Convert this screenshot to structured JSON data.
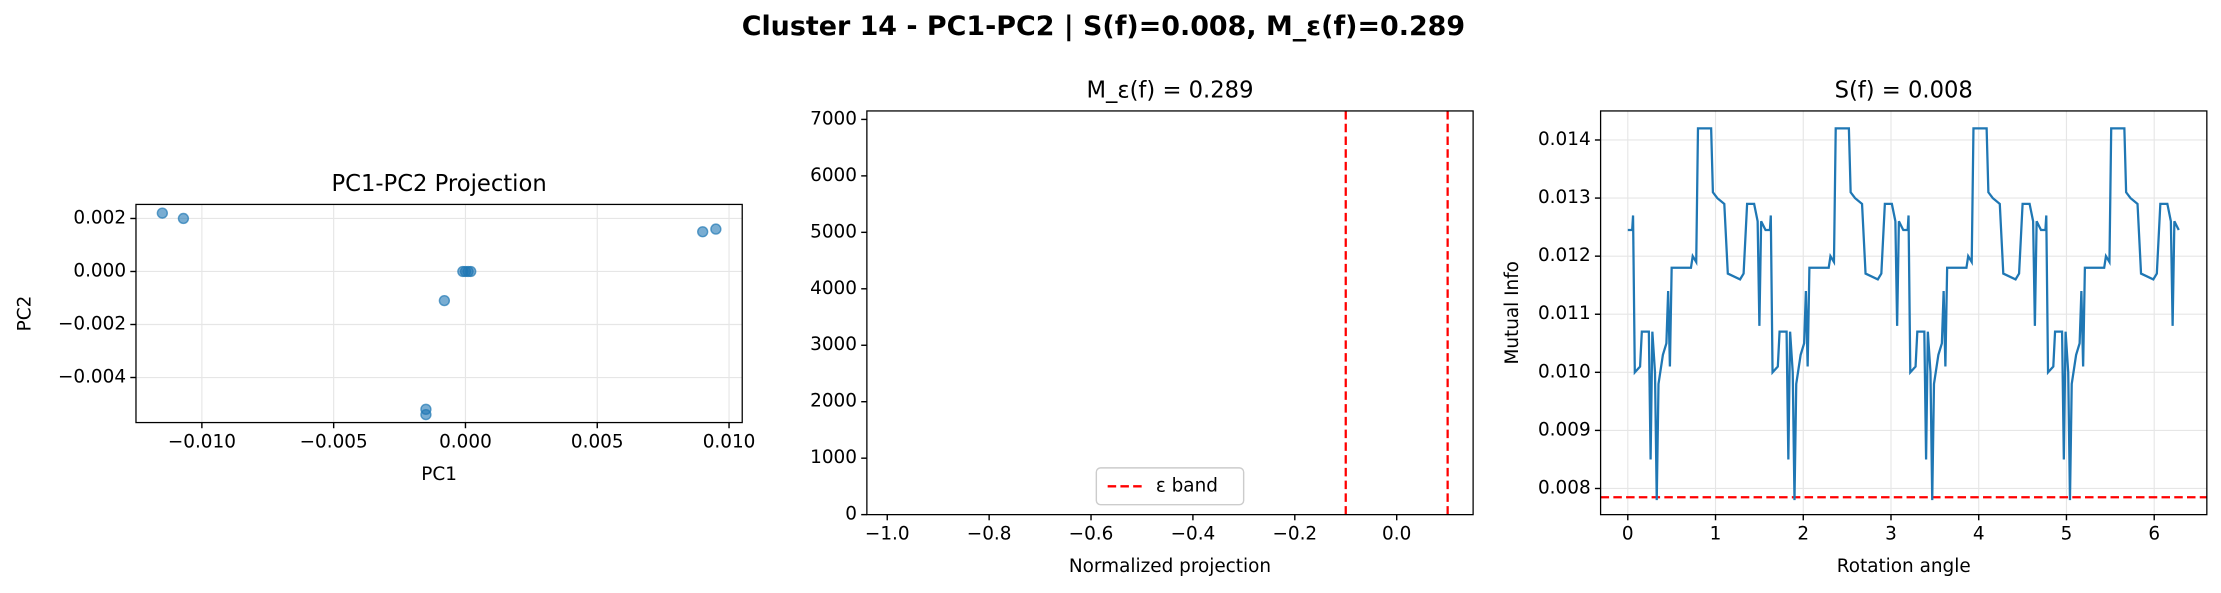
{
  "title": "Cluster 14 - PC1-PC2 | S(f)=0.008, M_ε(f)=0.289",
  "chart_data": [
    {
      "type": "scatter",
      "title": "PC1-PC2 Projection",
      "x_label": "PC1",
      "y_label": "PC2",
      "color": "#1f77b4",
      "grid": true,
      "x": [
        -0.0115,
        -0.0107,
        0.009,
        0.0095,
        0.0,
        0.0001,
        -0.0001,
        0.0002,
        -0.0008,
        -0.0015,
        -0.0015
      ],
      "values": [
        0.0022,
        0.002,
        0.0015,
        0.0016,
        0.0,
        0.0,
        0.0,
        0.0,
        -0.0011,
        -0.0052,
        -0.0054
      ],
      "xlim": [
        -0.0125,
        0.0105
      ],
      "ylim": [
        -0.0057,
        0.00253
      ],
      "xticks": [
        {
          "value": -0.01,
          "label": "−0.010"
        },
        {
          "value": -0.005,
          "label": "−0.005"
        },
        {
          "value": 0,
          "label": "0.000"
        },
        {
          "value": 0.005,
          "label": "0.005"
        },
        {
          "value": 0.01,
          "label": "0.010"
        }
      ],
      "yticks": [
        {
          "value": -0.004,
          "label": "−0.004"
        },
        {
          "value": -0.002,
          "label": "−0.002"
        },
        {
          "value": 0,
          "label": "0.000"
        },
        {
          "value": 0.002,
          "label": "0.002"
        }
      ]
    },
    {
      "type": "vline",
      "title": "M_ε(f) = 0.289",
      "x_label": "Normalized projection",
      "grid": false,
      "legend": "lower center",
      "lines": [
        {
          "name": "ε band",
          "color": "#ff0000",
          "x": [
            -0.1,
            0.1
          ]
        }
      ],
      "xlim": [
        -1.04,
        0.15
      ],
      "ylim": [
        0,
        7150
      ],
      "xticks": [
        {
          "value": -1.0,
          "label": "−1.0"
        },
        {
          "value": -0.8,
          "label": "−0.8"
        },
        {
          "value": -0.6,
          "label": "−0.6"
        },
        {
          "value": -0.4,
          "label": "−0.4"
        },
        {
          "value": -0.2,
          "label": "−0.2"
        },
        {
          "value": 0.0,
          "label": "0.0"
        }
      ],
      "yticks": [
        0,
        1000,
        2000,
        3000,
        4000,
        5000,
        6000,
        7000
      ]
    },
    {
      "type": "line",
      "title": "S(f) = 0.008",
      "x_label": "Rotation angle",
      "y_label": "Mutual Info",
      "color": "#1f77b4",
      "grid": true,
      "hlines": [
        {
          "value": 0.00785,
          "color": "#ff0000"
        }
      ],
      "x": [
        0,
        0.05,
        0.06,
        0.08,
        0.14,
        0.16,
        0.24,
        0.26,
        0.28,
        0.31,
        0.33,
        0.35,
        0.4,
        0.44,
        0.46,
        0.48,
        0.5,
        0.72,
        0.74,
        0.78,
        0.8,
        0.95,
        0.97,
        1.02,
        1.1,
        1.14,
        1.28,
        1.32,
        1.36,
        1.44,
        1.48,
        1.5,
        1.52,
        1.57,
        1.62,
        1.63,
        1.65,
        1.71,
        1.73,
        1.81,
        1.83,
        1.85,
        1.88,
        1.9,
        1.92,
        1.97,
        2.01,
        2.03,
        2.05,
        2.07,
        2.29,
        2.31,
        2.35,
        2.37,
        2.52,
        2.54,
        2.59,
        2.67,
        2.71,
        2.85,
        2.89,
        2.93,
        3.01,
        3.05,
        3.07,
        3.09,
        3.14,
        3.19,
        3.2,
        3.22,
        3.28,
        3.3,
        3.38,
        3.4,
        3.42,
        3.45,
        3.47,
        3.49,
        3.54,
        3.58,
        3.6,
        3.62,
        3.64,
        3.86,
        3.88,
        3.92,
        3.94,
        4.09,
        4.11,
        4.16,
        4.24,
        4.28,
        4.42,
        4.46,
        4.5,
        4.58,
        4.62,
        4.64,
        4.66,
        4.71,
        4.76,
        4.77,
        4.79,
        4.85,
        4.87,
        4.95,
        4.97,
        4.99,
        5.02,
        5.04,
        5.06,
        5.11,
        5.15,
        5.17,
        5.19,
        5.21,
        5.43,
        5.45,
        5.49,
        5.51,
        5.66,
        5.68,
        5.73,
        5.81,
        5.85,
        5.99,
        6.03,
        6.07,
        6.15,
        6.19,
        6.21,
        6.23,
        6.28
      ],
      "values": [
        0.01245,
        0.01245,
        0.0127,
        0.01,
        0.0101,
        0.0107,
        0.0107,
        0.0085,
        0.0107,
        0.01,
        0.0078,
        0.0098,
        0.0103,
        0.0105,
        0.0114,
        0.0101,
        0.0118,
        0.0118,
        0.012,
        0.0119,
        0.0142,
        0.0142,
        0.0131,
        0.013,
        0.0129,
        0.0117,
        0.0116,
        0.0117,
        0.0129,
        0.0129,
        0.0126,
        0.0108,
        0.0126,
        0.01245,
        0.01245,
        0.0127,
        0.01,
        0.0101,
        0.0107,
        0.0107,
        0.0085,
        0.0107,
        0.01,
        0.0078,
        0.0098,
        0.0103,
        0.0105,
        0.0114,
        0.0101,
        0.0118,
        0.0118,
        0.012,
        0.0119,
        0.0142,
        0.0142,
        0.0131,
        0.013,
        0.0129,
        0.0117,
        0.0116,
        0.0117,
        0.0129,
        0.0129,
        0.0126,
        0.0108,
        0.0126,
        0.01245,
        0.01245,
        0.0127,
        0.01,
        0.0101,
        0.0107,
        0.0107,
        0.0085,
        0.0107,
        0.01,
        0.0078,
        0.0098,
        0.0103,
        0.0105,
        0.0114,
        0.0101,
        0.0118,
        0.0118,
        0.012,
        0.0119,
        0.0142,
        0.0142,
        0.0131,
        0.013,
        0.0129,
        0.0117,
        0.0116,
        0.0117,
        0.0129,
        0.0129,
        0.0126,
        0.0108,
        0.0126,
        0.01245,
        0.01245,
        0.0127,
        0.01,
        0.0101,
        0.0107,
        0.0107,
        0.0085,
        0.0107,
        0.01,
        0.0078,
        0.0098,
        0.0103,
        0.0105,
        0.0114,
        0.0101,
        0.0118,
        0.0118,
        0.012,
        0.0119,
        0.0142,
        0.0142,
        0.0131,
        0.013,
        0.0129,
        0.0117,
        0.0116,
        0.0117,
        0.0129,
        0.0129,
        0.0126,
        0.0108,
        0.0126,
        0.01245
      ],
      "xlim": [
        -0.31,
        6.6
      ],
      "ylim": [
        0.00755,
        0.0145
      ],
      "xticks": [
        0,
        1,
        2,
        3,
        4,
        5,
        6
      ],
      "yticks": [
        0.008,
        0.009,
        {
          "value": 0.01,
          "label": "0.010"
        },
        0.011,
        0.012,
        0.013,
        0.014
      ]
    }
  ]
}
